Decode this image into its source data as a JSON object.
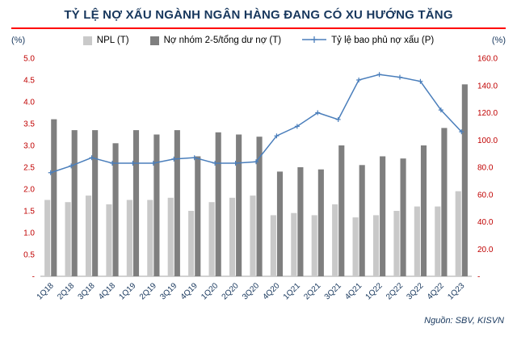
{
  "title": "TỶ LỆ NỢ XẤU NGÀNH NGÂN HÀNG ĐANG CÓ XU HƯỚNG TĂNG",
  "source": "Nguồn: SBV, KISVN",
  "left_axis_unit": "(%)",
  "right_axis_unit": "(%)",
  "colors": {
    "title": "#17375d",
    "title_underline": "#ff0000",
    "axis_tick": "#c00000",
    "npl_bar": "#c9c9c9",
    "group25_bar": "#7f7f7f",
    "coverage_line": "#4a7ebb"
  },
  "legend": [
    {
      "label": "NPL (T)",
      "color": "#c9c9c9",
      "type": "bar"
    },
    {
      "label": "Nợ nhóm 2-5/tổng dư nợ (T)",
      "color": "#7f7f7f",
      "type": "bar"
    },
    {
      "label": "Tỷ lệ bao phủ nợ xấu (P)",
      "color": "#4a7ebb",
      "type": "line"
    }
  ],
  "chart_data": {
    "type": "bar+line combo",
    "categories": [
      "1Q18",
      "2Q18",
      "3Q18",
      "4Q18",
      "1Q19",
      "2Q19",
      "3Q19",
      "4Q19",
      "1Q20",
      "2Q20",
      "3Q20",
      "4Q20",
      "1Q21",
      "2Q21",
      "3Q21",
      "4Q21",
      "1Q22",
      "2Q22",
      "3Q22",
      "4Q22",
      "1Q23"
    ],
    "series": [
      {
        "name": "NPL (T)",
        "type": "bar",
        "axis": "left",
        "color": "#c9c9c9",
        "values": [
          1.75,
          1.7,
          1.85,
          1.65,
          1.75,
          1.75,
          1.8,
          1.5,
          1.7,
          1.8,
          1.85,
          1.4,
          1.45,
          1.4,
          1.65,
          1.35,
          1.4,
          1.5,
          1.6,
          1.6,
          1.95
        ]
      },
      {
        "name": "Nợ nhóm 2-5/tổng dư nợ (T)",
        "type": "bar",
        "axis": "left",
        "color": "#7f7f7f",
        "values": [
          3.6,
          3.35,
          3.35,
          3.05,
          3.35,
          3.25,
          3.35,
          2.75,
          3.3,
          3.25,
          3.2,
          2.4,
          2.5,
          2.45,
          3.0,
          2.55,
          2.75,
          2.7,
          3.0,
          3.4,
          4.4
        ]
      },
      {
        "name": "Tỷ lệ bao phủ nợ xấu (P)",
        "type": "line",
        "axis": "right",
        "color": "#4a7ebb",
        "values": [
          76,
          81,
          87,
          83,
          83,
          83,
          86,
          87,
          83,
          83,
          84,
          103,
          110,
          120,
          115,
          144,
          148,
          146,
          143,
          122,
          106
        ]
      }
    ],
    "left_axis": {
      "min": 0,
      "max": 5,
      "step": 0.5,
      "ticks": [
        "-",
        "0.5",
        "1.0",
        "1.5",
        "2.0",
        "2.5",
        "3.0",
        "3.5",
        "4.0",
        "4.5",
        "5.0"
      ]
    },
    "right_axis": {
      "min": 0,
      "max": 160,
      "step": 20,
      "ticks": [
        "-",
        "20.0",
        "40.0",
        "60.0",
        "80.0",
        "100.0",
        "120.0",
        "140.0",
        "160.0"
      ]
    },
    "grid": "off",
    "legend_position": "top"
  }
}
